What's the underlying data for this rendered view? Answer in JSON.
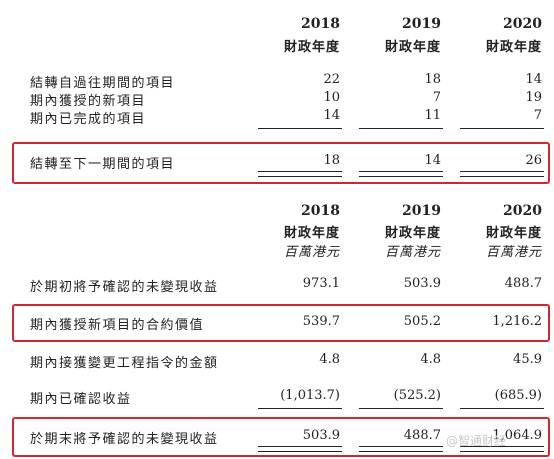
{
  "table1": {
    "years": [
      "2018",
      "2019",
      "2020"
    ],
    "fiscal_label": "財政年度",
    "rows": [
      {
        "label": "結轉自過往期間的項目",
        "values": [
          "22",
          "18",
          "14"
        ]
      },
      {
        "label": "期內獲授的新項目",
        "values": [
          "10",
          "7",
          "19"
        ]
      },
      {
        "label": "期內已完成的項目",
        "values": [
          "14",
          "11",
          "7"
        ]
      }
    ],
    "total": {
      "label": "結轉至下一期間的項目",
      "values": [
        "18",
        "14",
        "26"
      ]
    }
  },
  "table2": {
    "years": [
      "2018",
      "2019",
      "2020"
    ],
    "fiscal_label": "財政年度",
    "unit_label": "百萬港元",
    "rows": [
      {
        "label": "於期初將予確認的未變現收益",
        "values": [
          "973.1",
          "503.9",
          "488.7"
        ]
      },
      {
        "label": "期內獲授新項目的合約價值",
        "values": [
          "539.7",
          "505.2",
          "1,216.2"
        ]
      },
      {
        "label": "期內接獲變更工程指令的金額",
        "values": [
          "4.8",
          "4.8",
          "45.9"
        ]
      },
      {
        "label": "期內已確認收益",
        "values": [
          "(1,013.7)",
          "(525.2)",
          "(685.9)"
        ]
      }
    ],
    "total": {
      "label": "於期末將予確認的未變現收益",
      "values": [
        "503.9",
        "488.7",
        "1,064.9"
      ]
    }
  },
  "watermark": {
    "text": "@智通财经"
  },
  "colors": {
    "highlight": "#d3262f",
    "text": "#222222"
  }
}
